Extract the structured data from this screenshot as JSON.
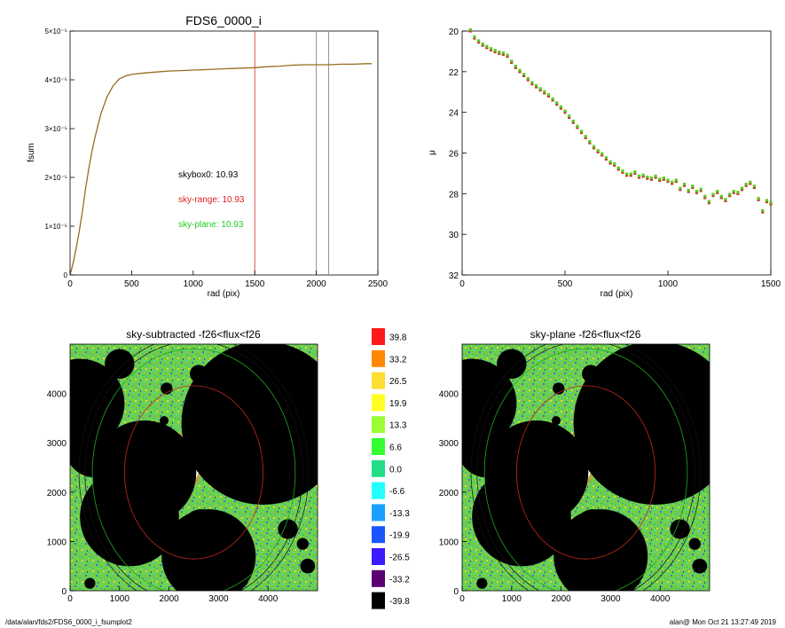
{
  "footer": {
    "path": "/data/alan/fds2/FDS6_0000_i_fsumplot2",
    "stamp": "alan@  Mon Oct 21 13:27:49 2019"
  },
  "chart_data": [
    {
      "id": "fsum",
      "type": "line",
      "title": "FDS6_0000_i",
      "xlabel": "rad (pix)",
      "ylabel": "fsum",
      "xlim": [
        0,
        2500
      ],
      "ylim": [
        0,
        5e-05
      ],
      "xticks": [
        "0",
        "500",
        "1000",
        "1500",
        "2000",
        "2500"
      ],
      "yticks": [
        "0",
        "1×10⁻⁵",
        "2×10⁻⁵",
        "3×10⁻⁵",
        "4×10⁻⁵",
        "5×10⁻⁵"
      ],
      "x": [
        0,
        25,
        50,
        75,
        100,
        125,
        150,
        175,
        200,
        225,
        250,
        300,
        350,
        400,
        450,
        500,
        600,
        700,
        800,
        900,
        1000,
        1100,
        1200,
        1300,
        1400,
        1500,
        1600,
        1700,
        1800,
        1900,
        2000,
        2100,
        2200,
        2300,
        2400,
        2450
      ],
      "y": [
        0,
        2.5e-06,
        5.5e-06,
        9e-06,
        1.3e-05,
        1.75e-05,
        2.15e-05,
        2.5e-05,
        2.8e-05,
        3.05e-05,
        3.3e-05,
        3.65e-05,
        3.88e-05,
        4.02e-05,
        4.08e-05,
        4.11e-05,
        4.14e-05,
        4.16e-05,
        4.18e-05,
        4.19e-05,
        4.2e-05,
        4.21e-05,
        4.22e-05,
        4.23e-05,
        4.24e-05,
        4.25e-05,
        4.27e-05,
        4.28e-05,
        4.3e-05,
        4.31e-05,
        4.31e-05,
        4.31e-05,
        4.32e-05,
        4.32e-05,
        4.33e-05,
        4.33e-05
      ],
      "vlines": [
        {
          "x": 1500,
          "color": "#d04040"
        },
        {
          "x": 2000,
          "color": "#888888"
        },
        {
          "x": 2100,
          "color": "#888888"
        }
      ],
      "annotations": [
        {
          "text": "skybox0: 10.93",
          "color": "#000000"
        },
        {
          "text": "sky-range: 10.93",
          "color": "#e02020"
        },
        {
          "text": "sky-plane: 10.93",
          "color": "#22cc22"
        }
      ]
    },
    {
      "id": "mu",
      "type": "scatter",
      "title": "",
      "xlabel": "rad (pix)",
      "ylabel": "μ",
      "xlim": [
        0,
        1500
      ],
      "ylim": [
        32,
        20
      ],
      "xticks": [
        "0",
        "500",
        "1000",
        "1500"
      ],
      "yticks": [
        "20",
        "22",
        "24",
        "26",
        "28",
        "30",
        "32"
      ],
      "x": [
        40,
        60,
        80,
        100,
        120,
        140,
        160,
        180,
        200,
        220,
        240,
        260,
        280,
        300,
        320,
        340,
        360,
        380,
        400,
        420,
        440,
        460,
        480,
        500,
        520,
        540,
        560,
        580,
        600,
        620,
        640,
        660,
        680,
        700,
        720,
        740,
        760,
        780,
        800,
        820,
        840,
        860,
        880,
        900,
        920,
        940,
        960,
        980,
        1000,
        1020,
        1040,
        1060,
        1080,
        1100,
        1120,
        1140,
        1160,
        1180,
        1200,
        1220,
        1240,
        1260,
        1280,
        1300,
        1320,
        1340,
        1360,
        1380,
        1400,
        1420,
        1440,
        1460,
        1480,
        1500
      ],
      "y": [
        20.0,
        20.35,
        20.55,
        20.7,
        20.82,
        20.93,
        21.02,
        21.1,
        21.15,
        21.25,
        21.55,
        21.8,
        22.0,
        22.2,
        22.4,
        22.6,
        22.75,
        22.9,
        23.05,
        23.2,
        23.4,
        23.6,
        23.8,
        24.0,
        24.25,
        24.5,
        24.75,
        25.0,
        25.25,
        25.5,
        25.75,
        25.95,
        26.1,
        26.3,
        26.5,
        26.6,
        26.8,
        26.95,
        27.1,
        27.1,
        27.0,
        27.2,
        27.15,
        27.25,
        27.3,
        27.2,
        27.35,
        27.3,
        27.4,
        27.5,
        27.4,
        27.8,
        27.6,
        27.9,
        27.7,
        27.95,
        27.85,
        28.2,
        28.45,
        28.1,
        27.95,
        28.2,
        28.35,
        28.1,
        27.95,
        28.0,
        27.8,
        27.6,
        27.5,
        27.7,
        28.3,
        28.9,
        28.4,
        28.5
      ]
    },
    {
      "id": "img1",
      "type": "heatmap",
      "title": "sky-subtracted -f26<flux<f26",
      "xlim": [
        0,
        5000
      ],
      "ylim": [
        0,
        5000
      ],
      "xticks": [
        "0",
        "1000",
        "2000",
        "3000",
        "4000"
      ],
      "yticks": [
        "0",
        "1000",
        "2000",
        "3000",
        "4000"
      ]
    },
    {
      "id": "img2",
      "type": "heatmap",
      "title": "sky-plane -f26<flux<f26",
      "xlim": [
        0,
        5000
      ],
      "ylim": [
        0,
        5000
      ],
      "xticks": [
        "0",
        "1000",
        "2000",
        "3000",
        "4000"
      ],
      "yticks": [
        "0",
        "1000",
        "2000",
        "3000",
        "4000"
      ]
    },
    {
      "id": "colorbar",
      "type": "table",
      "labels": [
        "39.8",
        "33.2",
        "26.5",
        "19.9",
        "13.3",
        "6.6",
        "0.0",
        "-6.6",
        "-13.3",
        "-19.9",
        "-26.5",
        "-33.2",
        "-39.8"
      ],
      "colors": [
        "#ff1a1a",
        "#ff8800",
        "#ffdd33",
        "#ffff22",
        "#99ff33",
        "#33ff33",
        "#22dd88",
        "#22ffff",
        "#1aa0ff",
        "#1a55ff",
        "#3a1aff",
        "#5a0070",
        "#000000"
      ]
    }
  ]
}
